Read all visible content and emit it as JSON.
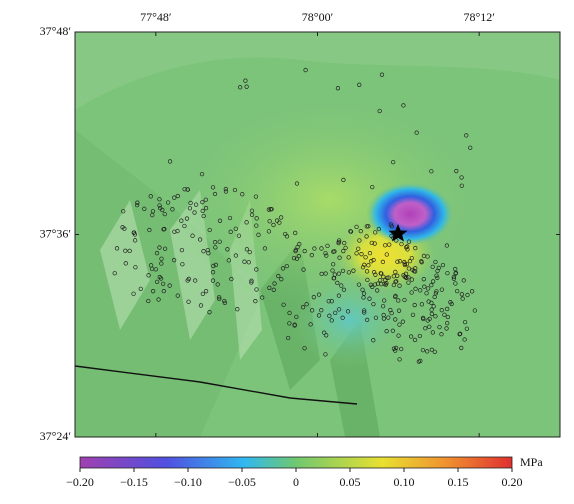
{
  "map": {
    "lon_range": [
      77.7,
      78.3
    ],
    "lat_range": [
      37.4,
      37.8
    ],
    "lon_ticks": [
      {
        "value": 77.8,
        "label": "77°48′"
      },
      {
        "value": 78.0,
        "label": "78°00′"
      },
      {
        "value": 78.2,
        "label": "78°12′"
      }
    ],
    "lat_ticks": [
      {
        "value": 37.8,
        "label": "37°48′"
      },
      {
        "value": 37.6,
        "label": "37°36′"
      },
      {
        "value": 37.4,
        "label": "37°24′"
      }
    ],
    "colorbar": {
      "unit": "MPa",
      "range": [
        -0.2,
        0.2
      ],
      "ticks": [
        {
          "value": -0.2,
          "label": "−0.20"
        },
        {
          "value": -0.15,
          "label": "−0.15"
        },
        {
          "value": -0.1,
          "label": "−0.10"
        },
        {
          "value": -0.05,
          "label": "−0.05"
        },
        0,
        0.05,
        {
          "value": 0.1,
          "label": "0.10"
        },
        0.15,
        {
          "value": 0.2,
          "label": "0.20"
        }
      ]
    }
  }
}
